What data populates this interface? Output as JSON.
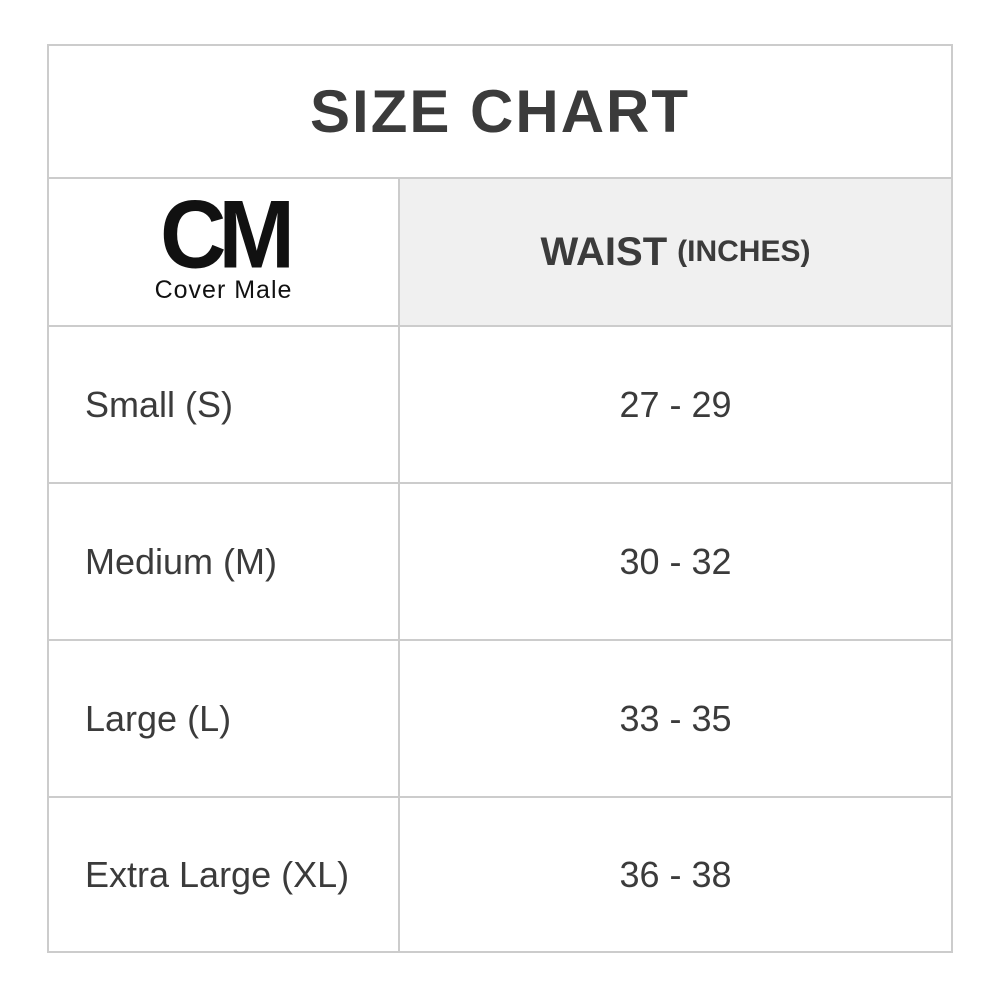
{
  "page": {
    "title": "SIZE CHART"
  },
  "logo": {
    "abbr": "CM",
    "name": "Cover Male"
  },
  "table": {
    "waist_header": {
      "label": "WAIST",
      "unit": "(INCHES)"
    },
    "rows": [
      {
        "size": "Small (S)",
        "waist": "27 - 29"
      },
      {
        "size": "Medium (M)",
        "waist": "30 - 32"
      },
      {
        "size": "Large (L)",
        "waist": "33 - 35"
      },
      {
        "size": "Extra Large (XL)",
        "waist": "36 - 38"
      }
    ]
  },
  "colors": {
    "border": "#cccccc",
    "header_bg": "#f0f0f0",
    "text": "#3b3b3b",
    "logo": "#111111"
  }
}
